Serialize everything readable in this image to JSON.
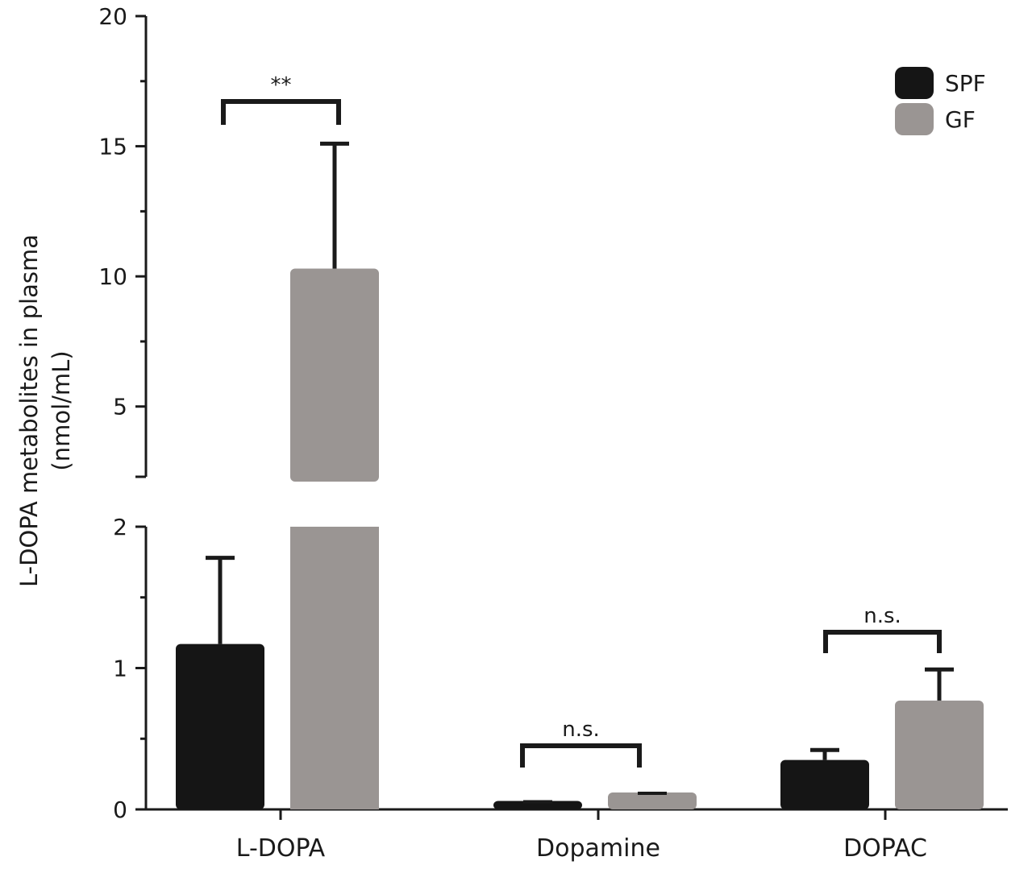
{
  "chart_data": {
    "type": "bar",
    "title": "",
    "ylabel_line1": "L-DOPA metabolites in plasma",
    "ylabel_line2": "(nmol/mL)",
    "xlabel": "",
    "categories": [
      "L-DOPA",
      "Dopamine",
      "DOPAC"
    ],
    "series": [
      {
        "name": "SPF",
        "color": "#151515",
        "values": [
          1.17,
          0.06,
          0.35
        ],
        "errors": [
          0.61,
          0.0,
          0.07
        ]
      },
      {
        "name": "GF",
        "color": "#9a9593",
        "values": [
          10.3,
          0.12,
          0.77
        ],
        "errors": [
          4.8,
          0.0,
          0.22
        ]
      }
    ],
    "y_axis": {
      "broken": true,
      "lower_range": [
        0,
        2
      ],
      "upper_range": [
        2.3,
        20
      ],
      "lower_ticks": [
        "0",
        "1",
        "2"
      ],
      "upper_ticks": [
        "5",
        "10",
        "15",
        "20"
      ]
    },
    "significance": [
      {
        "category": "L-DOPA",
        "label": "**"
      },
      {
        "category": "Dopamine",
        "label": "n.s."
      },
      {
        "category": "DOPAC",
        "label": "n.s."
      }
    ],
    "legend_position": "top-right",
    "grid": false
  }
}
